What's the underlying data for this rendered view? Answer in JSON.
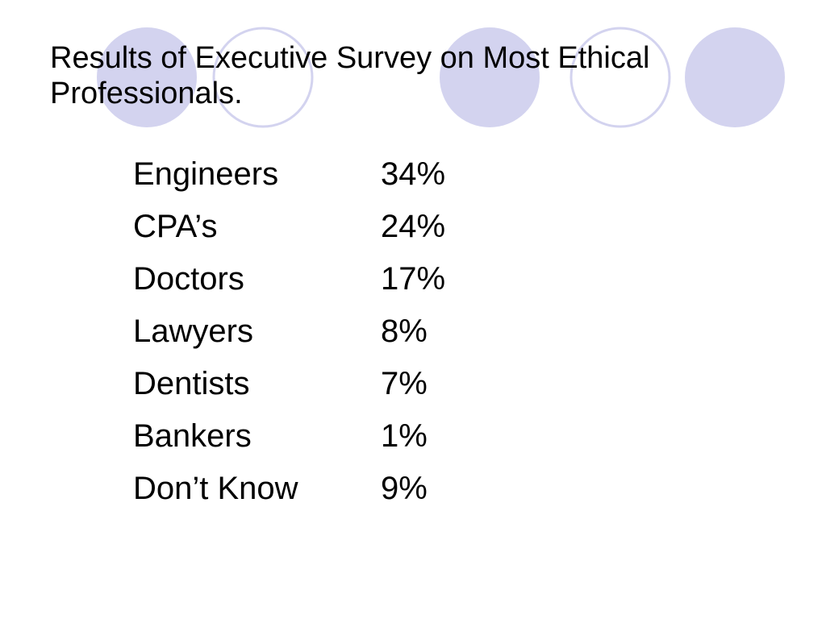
{
  "slide": {
    "title": "Results of Executive Survey on Most Ethical Professionals.",
    "decoration_color": "#d3d3ef",
    "results": [
      {
        "label": "Engineers",
        "value": "34%"
      },
      {
        "label": "CPA’s",
        "value": "24%"
      },
      {
        "label": "Doctors",
        "value": "17%"
      },
      {
        "label": "Lawyers",
        "value": "8%"
      },
      {
        "label": "Dentists",
        "value": "7%"
      },
      {
        "label": "Bankers",
        "value": "1%"
      },
      {
        "label": "Don’t Know",
        "value": "9%"
      }
    ]
  }
}
